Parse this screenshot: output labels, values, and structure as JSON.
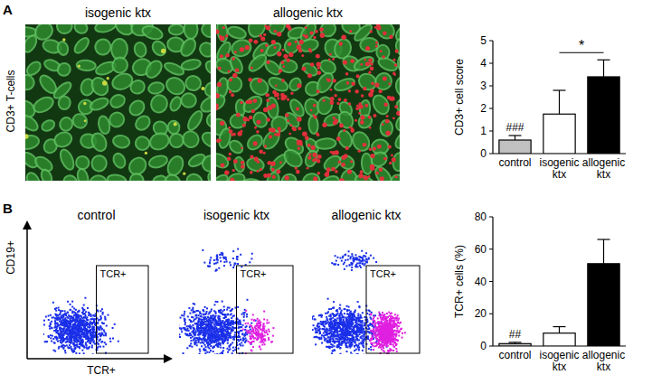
{
  "panels": {
    "labels": [
      "A",
      "B"
    ]
  },
  "micrographs": {
    "row_label": "CD3+ T-cells",
    "titles": [
      "isogenic ktx",
      "allogenic ktx"
    ]
  },
  "flow_cytometry": {
    "titles": [
      "control",
      "isogenic ktx",
      "allogenic ktx"
    ],
    "y_label": "CD19+",
    "x_label": "TCR+",
    "gate_label": "TCR+"
  },
  "chart_data": [
    {
      "type": "bar",
      "y_label": "CD3+ cell score",
      "categories": [
        "control",
        "isogenic ktx",
        "allogenic ktx"
      ],
      "values": [
        0.6,
        1.75,
        3.4
      ],
      "errors": [
        0.2,
        1.05,
        0.75
      ],
      "colors": [
        "#c0c0c0",
        "#ffffff",
        "#000000"
      ],
      "ylim": [
        0,
        5
      ],
      "yticks": [
        0,
        1,
        2,
        3,
        4,
        5
      ],
      "annotations": [
        {
          "text": "###",
          "category": 0
        },
        {
          "text": "*",
          "between": [
            1,
            2
          ]
        }
      ]
    },
    {
      "type": "bar",
      "y_label": "TCR+ cells (%)",
      "categories": [
        "control",
        "isogenic ktx",
        "allogenic ktx"
      ],
      "values": [
        1.5,
        8,
        51
      ],
      "errors": [
        0.8,
        4,
        15
      ],
      "colors": [
        "#c0c0c0",
        "#ffffff",
        "#000000"
      ],
      "ylim": [
        0,
        80
      ],
      "yticks": [
        0,
        20,
        40,
        60,
        80
      ],
      "annotations": [
        {
          "text": "##",
          "category": 0
        }
      ]
    }
  ]
}
